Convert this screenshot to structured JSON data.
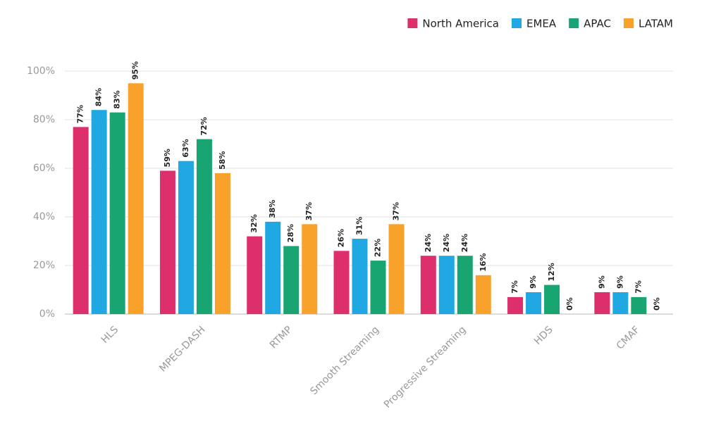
{
  "chart_data": {
    "type": "bar",
    "categories": [
      "HLS",
      "MPEG-DASH",
      "RTMP",
      "Smooth Streaming",
      "Progressive Streaming",
      "HDS",
      "CMAF"
    ],
    "series": [
      {
        "name": "North America",
        "color": "#dc2f6c",
        "values": [
          77,
          59,
          32,
          26,
          24,
          7,
          9
        ],
        "value_labels": [
          "77%",
          "59%",
          "32%",
          "26%",
          "24%",
          "7%",
          "9%"
        ]
      },
      {
        "name": "EMEA",
        "color": "#1fa8e2",
        "values": [
          84,
          63,
          38,
          31,
          24,
          9,
          9
        ],
        "value_labels": [
          "84%",
          "63%",
          "38%",
          "31%",
          "24%",
          "9%",
          "9%"
        ]
      },
      {
        "name": "APAC",
        "color": "#19a571",
        "values": [
          83,
          72,
          28,
          22,
          24,
          12,
          7
        ],
        "value_labels": [
          "83%",
          "72%",
          "28%",
          "22%",
          "24%",
          "12%",
          "7%"
        ]
      },
      {
        "name": "LATAM",
        "color": "#f8a22b",
        "values": [
          95,
          58,
          37,
          37,
          16,
          0,
          0
        ],
        "value_labels": [
          "95%",
          "58%",
          "37%",
          "37%",
          "16%",
          "0%",
          "0%"
        ]
      }
    ],
    "ylim": [
      0,
      100
    ],
    "yticks": [
      {
        "value": 0,
        "label": "0%"
      },
      {
        "value": 20,
        "label": "20%"
      },
      {
        "value": 40,
        "label": "40%"
      },
      {
        "value": 60,
        "label": "60%"
      },
      {
        "value": 80,
        "label": "80%"
      },
      {
        "value": 100,
        "label": "100%"
      }
    ],
    "grid": true,
    "legend": "top-right"
  }
}
